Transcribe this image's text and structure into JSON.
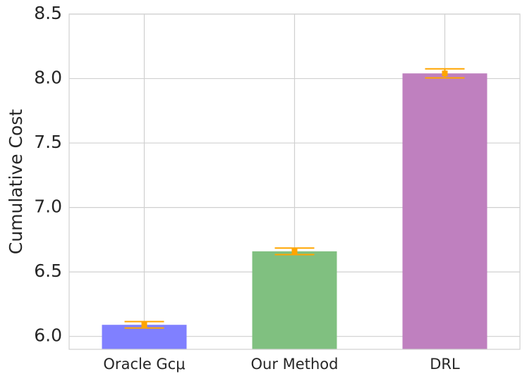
{
  "chart_data": {
    "type": "bar",
    "y_label": "Cumulative Cost",
    "categories": [
      "Oracle Gcμ",
      "Our Method",
      "DRL"
    ],
    "values": [
      6.09,
      6.66,
      8.04
    ],
    "errors": [
      0.025,
      0.025,
      0.035
    ],
    "colors": [
      "#8080ff",
      "#80c080",
      "#bf80bf"
    ],
    "error_color": "#ffa500",
    "ylim": [
      5.9,
      8.5
    ],
    "yticks": [
      {
        "value": 6,
        "label": "6.0"
      },
      {
        "value": 6.5,
        "label": "6.5"
      },
      {
        "value": 7,
        "label": "7.0"
      },
      {
        "value": 7.5,
        "label": "7.5"
      },
      {
        "value": 8,
        "label": "8.0"
      },
      {
        "value": 8.5,
        "label": "8.5"
      }
    ],
    "grid": true
  }
}
